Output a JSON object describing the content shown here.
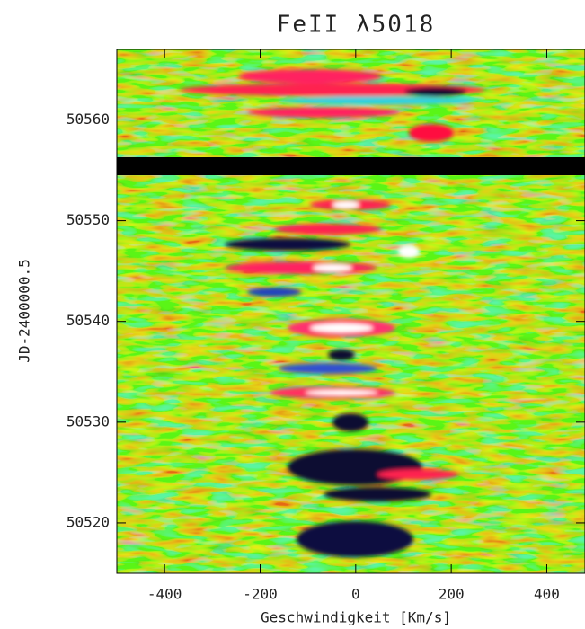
{
  "chart_data": {
    "type": "heatmap",
    "title": "FeII λ5018",
    "x_label": "Geschwindigkeit [Km/s]",
    "y_label": "JD-2400000.5",
    "xlim": [
      -500,
      480
    ],
    "xticks": [
      -400,
      -200,
      0,
      200,
      400
    ],
    "ylim": [
      50515,
      50567
    ],
    "yticks": [
      50520,
      50530,
      50540,
      50550,
      50560
    ]
  }
}
